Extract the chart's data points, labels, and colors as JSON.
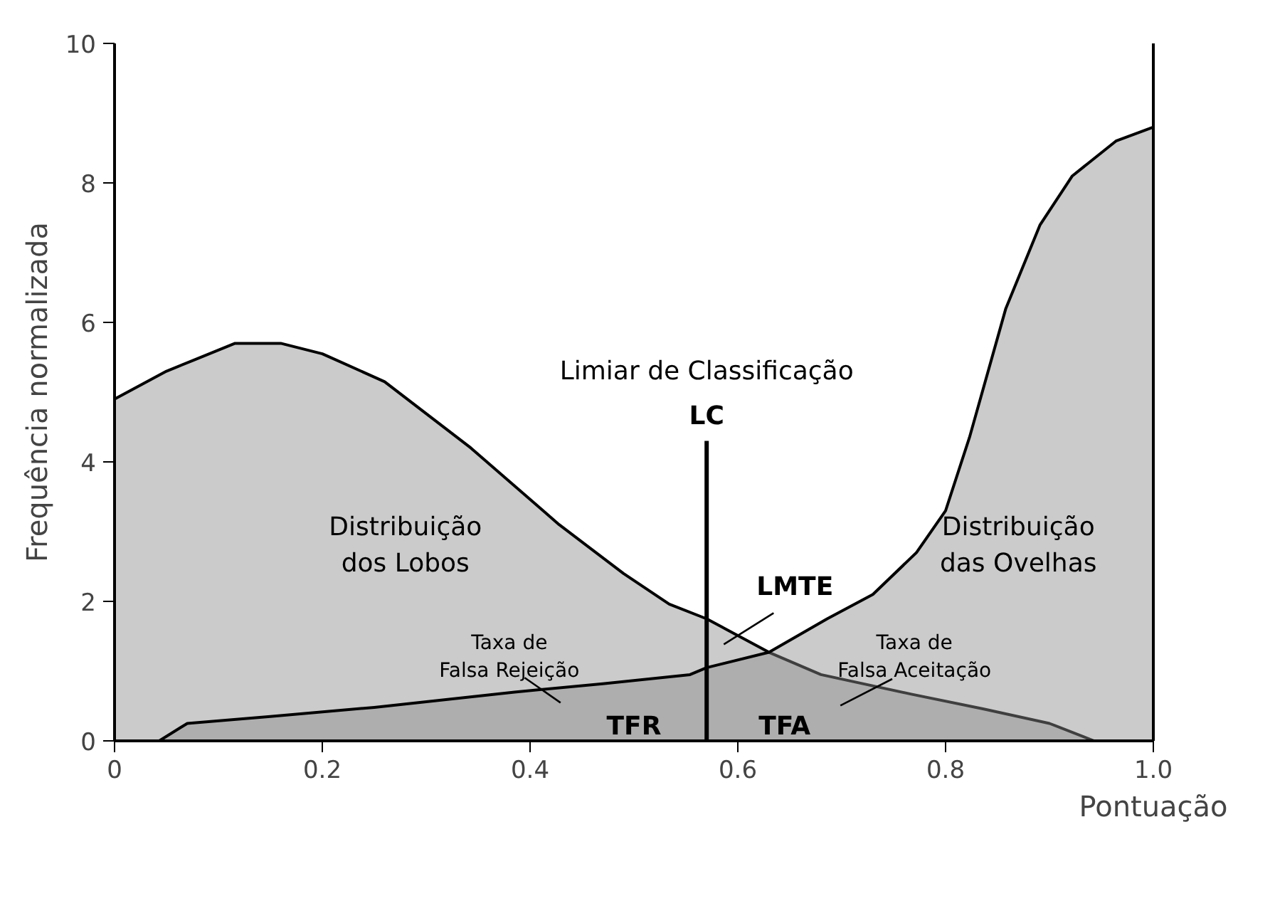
{
  "chart_data": {
    "type": "area",
    "xlabel": "Pontuação",
    "ylabel": "Frequência normalizada",
    "xlim": [
      0,
      1
    ],
    "ylim": [
      0,
      10
    ],
    "xticks": [
      0,
      0.2,
      0.4,
      0.6,
      0.8,
      {
        "value": 1,
        "label": "1.0"
      }
    ],
    "yticks": [
      0,
      2,
      4,
      6,
      8,
      10
    ],
    "grid": false,
    "series": [
      {
        "color": "#8c8c8c",
        "x": [
          0,
          0.05,
          0.116,
          0.16,
          0.2,
          0.26,
          0.343,
          0.428,
          0.49,
          0.534,
          0.57,
          0.63,
          0.68,
          0.767,
          0.836,
          0.9,
          0.943
        ],
        "values": [
          4.9,
          5.3,
          5.7,
          5.7,
          5.55,
          5.15,
          4.2,
          3.1,
          2.4,
          1.96,
          1.75,
          1.27,
          0.95,
          0.67,
          0.46,
          0.25,
          0
        ]
      },
      {
        "color": "#8c8c8c",
        "x": [
          0.043,
          0.07,
          0.15,
          0.25,
          0.385,
          0.47,
          0.554,
          0.57,
          0.63,
          0.686,
          0.73,
          0.772,
          0.8,
          0.823,
          0.858,
          0.891,
          0.922,
          0.964,
          1.0
        ],
        "values": [
          0,
          0.25,
          0.35,
          0.48,
          0.7,
          0.82,
          0.95,
          1.05,
          1.27,
          1.75,
          2.1,
          2.7,
          3.3,
          4.35,
          6.2,
          7.4,
          8.1,
          8.6,
          8.8
        ]
      },
      {
        "type": "line",
        "color": "#000000",
        "x": [
          0.57,
          0.57
        ],
        "values": [
          0,
          4.3
        ]
      }
    ],
    "annotations": [
      "Limiar de Classificação",
      "LC",
      "LMTE",
      "Taxa de\nFalsa Rejeição",
      "TFR",
      "TFA",
      "Taxa de\nFalsa Aceitação",
      "Distribuição\ndos Lobos",
      "Distribuição\ndas Ovelhas"
    ]
  }
}
